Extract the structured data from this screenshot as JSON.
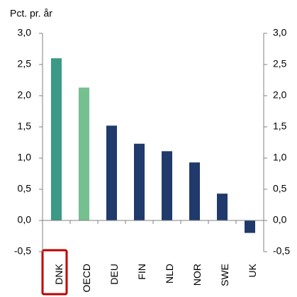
{
  "chart_data": {
    "type": "bar",
    "title": "Pct. pr. år",
    "categories": [
      "DNK",
      "OECD",
      "DEU",
      "FIN",
      "NLD",
      "NOR",
      "SWE",
      "UK"
    ],
    "values": [
      2.6,
      2.13,
      1.52,
      1.23,
      1.11,
      0.93,
      0.43,
      -0.2
    ],
    "colors": [
      "#3a9a85",
      "#74c08f",
      "#1f3a6b",
      "#1f3a6b",
      "#1f3a6b",
      "#1f3a6b",
      "#1f3a6b",
      "#1f3a6b"
    ],
    "ylim": [
      -0.5,
      3.0
    ],
    "yticks": [
      {
        "value": -0.5,
        "label": "-0,5"
      },
      {
        "value": 0,
        "label": "0,0"
      },
      {
        "value": 0.5,
        "label": "0,5"
      },
      {
        "value": 1.0,
        "label": "1,0"
      },
      {
        "value": 1.5,
        "label": "1,5"
      },
      {
        "value": 2.0,
        "label": "2,0"
      },
      {
        "value": 2.5,
        "label": "2,5"
      },
      {
        "value": 3.0,
        "label": "3,0"
      }
    ],
    "y2lim": [
      -0.5,
      3.0
    ],
    "y2ticks": [
      {
        "value": -0.5,
        "label": "-0,5"
      },
      {
        "value": 0,
        "label": "0,0"
      },
      {
        "value": 0.5,
        "label": "0,5"
      },
      {
        "value": 1.0,
        "label": "1,0"
      },
      {
        "value": 1.5,
        "label": "1,5"
      },
      {
        "value": 2.0,
        "label": "2,0"
      },
      {
        "value": 2.5,
        "label": "2,5"
      },
      {
        "value": 3.0,
        "label": "3,0"
      }
    ],
    "grid": false
  }
}
